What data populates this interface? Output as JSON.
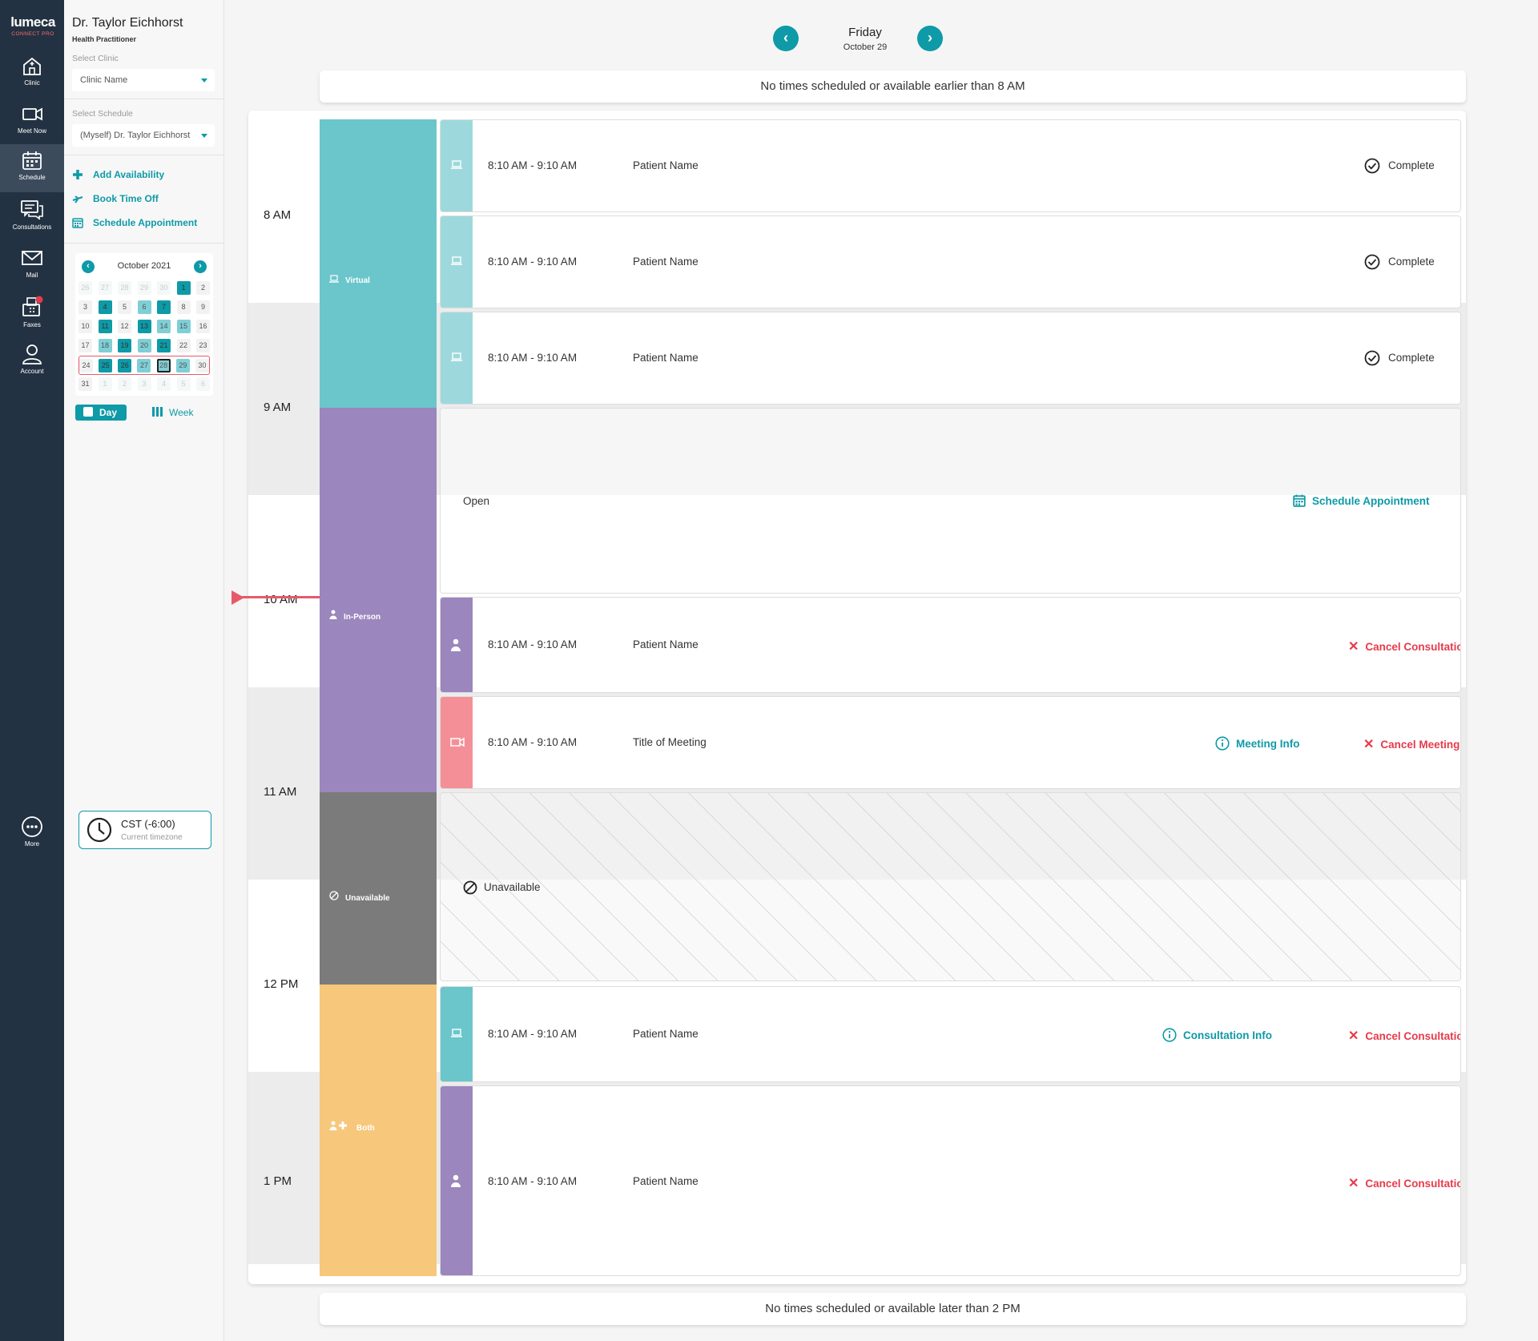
{
  "brand": {
    "name": "lumeca",
    "suffix": "CONNECT PRO",
    "colors": {
      "primary": "#0e9aa7",
      "danger": "#e63b4b",
      "rail": "#233242"
    }
  },
  "rail": {
    "items": [
      {
        "label": "Clinic",
        "icon": "clinic-icon"
      },
      {
        "label": "Meet Now",
        "icon": "video-icon"
      },
      {
        "label": "Schedule",
        "icon": "calendar-icon"
      },
      {
        "label": "Consultations",
        "icon": "chat-icon"
      },
      {
        "label": "Mail",
        "icon": "mail-icon"
      },
      {
        "label": "Faxes",
        "icon": "fax-icon"
      },
      {
        "label": "Account",
        "icon": "user-icon"
      }
    ],
    "more_label": "More"
  },
  "sidebar": {
    "doctor_name": "Dr. Taylor Eichhorst",
    "doctor_role": "Health Practitioner",
    "clinic_label": "Select Clinic",
    "clinic_value": "Clinic Name",
    "schedule_label": "Select Schedule",
    "schedule_value": "(Myself) Dr. Taylor Eichhorst",
    "actions": {
      "add_availability": "Add Availability",
      "book_time_off": "Book Time Off",
      "schedule_appointment": "Schedule Appointment"
    },
    "calendar": {
      "title": "October 2021",
      "prev": "‹",
      "next": "›",
      "weeks": [
        [
          {
            "d": "26",
            "s": "o"
          },
          {
            "d": "27",
            "s": "o"
          },
          {
            "d": "28",
            "s": "o"
          },
          {
            "d": "29",
            "s": "o"
          },
          {
            "d": "30",
            "s": "o"
          },
          {
            "d": "1",
            "s": "d"
          },
          {
            "d": "2",
            "s": "n"
          }
        ],
        [
          {
            "d": "3",
            "s": "n"
          },
          {
            "d": "4",
            "s": "d"
          },
          {
            "d": "5",
            "s": "n"
          },
          {
            "d": "6",
            "s": "l"
          },
          {
            "d": "7",
            "s": "d"
          },
          {
            "d": "8",
            "s": "n"
          },
          {
            "d": "9",
            "s": "n"
          }
        ],
        [
          {
            "d": "10",
            "s": "n"
          },
          {
            "d": "11",
            "s": "d"
          },
          {
            "d": "12",
            "s": "n"
          },
          {
            "d": "13",
            "s": "d"
          },
          {
            "d": "14",
            "s": "l"
          },
          {
            "d": "15",
            "s": "l"
          },
          {
            "d": "16",
            "s": "n"
          }
        ],
        [
          {
            "d": "17",
            "s": "n"
          },
          {
            "d": "18",
            "s": "l"
          },
          {
            "d": "19",
            "s": "d"
          },
          {
            "d": "20",
            "s": "l"
          },
          {
            "d": "21",
            "s": "d"
          },
          {
            "d": "22",
            "s": "n"
          },
          {
            "d": "23",
            "s": "n"
          }
        ],
        [
          {
            "d": "24",
            "s": "n"
          },
          {
            "d": "25",
            "s": "d"
          },
          {
            "d": "26",
            "s": "d"
          },
          {
            "d": "27",
            "s": "l"
          },
          {
            "d": "28",
            "s": "today"
          },
          {
            "d": "29",
            "s": "l"
          },
          {
            "d": "30",
            "s": "n"
          }
        ],
        [
          {
            "d": "31",
            "s": "n"
          },
          {
            "d": "1",
            "s": "o"
          },
          {
            "d": "2",
            "s": "o"
          },
          {
            "d": "3",
            "s": "o"
          },
          {
            "d": "4",
            "s": "o"
          },
          {
            "d": "5",
            "s": "o"
          },
          {
            "d": "6",
            "s": "o"
          }
        ]
      ]
    },
    "view_day": "Day",
    "view_week": "Week",
    "timezone": "CST (-6:00)",
    "timezone_label": "Current timezone"
  },
  "header": {
    "day": "Friday",
    "date": "October 29",
    "prev": "‹",
    "next": "›"
  },
  "banner_top": "No times scheduled or available earlier than 8 AM",
  "banner_bottom": "No times scheduled or available later than 2 PM",
  "hours": [
    "8 AM",
    "9 AM",
    "10 AM",
    "11 AM",
    "12 PM",
    "1 PM"
  ],
  "availability": {
    "virtual": "Virtual",
    "in_person": "In-Person",
    "unavailable": "Unavailable",
    "both": "Both"
  },
  "appointments": [
    {
      "time": "8:10 AM - 9:10 AM",
      "name": "Patient Name",
      "status": "Complete"
    },
    {
      "time": "8:10 AM - 9:10 AM",
      "name": "Patient Name",
      "status": "Complete"
    },
    {
      "time": "8:10 AM - 9:10 AM",
      "name": "Patient Name",
      "status": "Complete"
    },
    {
      "time": "8:10 AM - 9:10 AM",
      "name": "Patient Name",
      "action": "Cancel Consultation"
    },
    {
      "time": "8:10 AM - 9:10 AM",
      "name": "Title of Meeting",
      "info": "Meeting Info",
      "action": "Cancel Meeting"
    },
    {
      "time": "8:10 AM - 9:10 AM",
      "name": "Patient Name",
      "info": "Consultation Info",
      "action": "Cancel Consultation"
    },
    {
      "time": "8:10 AM - 9:10 AM",
      "name": "Patient Name",
      "action": "Cancel Consultation"
    }
  ],
  "open_slot": {
    "label": "Open",
    "action": "Schedule Appointment"
  },
  "unavailable_slot": {
    "label": "Unavailable"
  }
}
